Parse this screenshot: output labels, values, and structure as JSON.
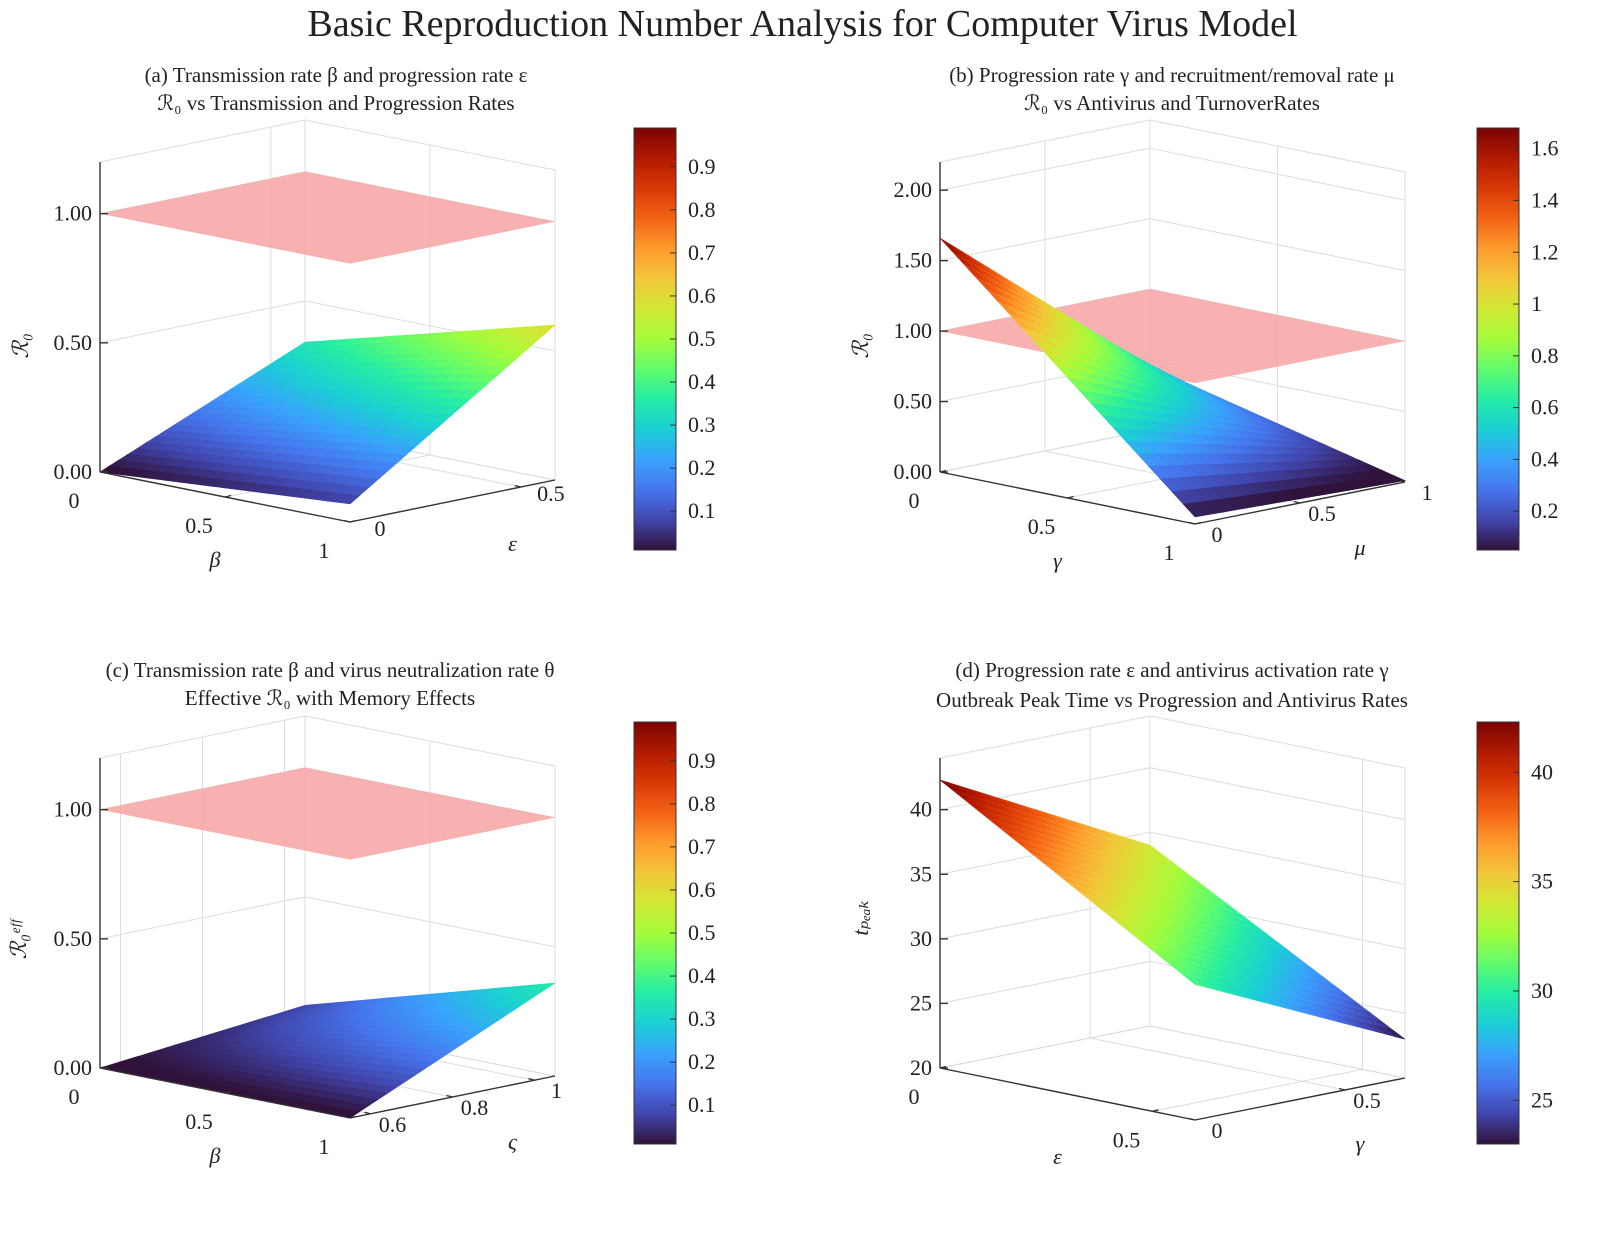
{
  "figure": {
    "title": "Basic Reproduction Number Analysis for Computer Virus Model",
    "surface_colormap": [
      "#30123b",
      "#4146ad",
      "#4675ed",
      "#39a2fc",
      "#1bcfd4",
      "#24eca6",
      "#61fc6c",
      "#a4fc3b",
      "#d1e834",
      "#f3c63a",
      "#fe9b2d",
      "#f36315",
      "#d93806",
      "#b11901",
      "#7a0403"
    ],
    "threshold_plane_color": "#f7a3a3",
    "grid_color": "#dcdcdc",
    "axis_color": "#333333"
  },
  "chart_data": [
    {
      "id": "a",
      "type": "surface",
      "subtitle": "(a) Transmission rate β and progression rate ε",
      "title": "ℛ₀ vs Transmission and Progression Rates",
      "xlabel": "β",
      "ylabel": "ε",
      "zlabel": "ℛ₀",
      "xticks": [
        "0",
        "0.5",
        "1"
      ],
      "yticks": [
        "0",
        "0.5"
      ],
      "zticks": [
        "0.00",
        "0.50",
        "1.00"
      ],
      "xlim": [
        0,
        1
      ],
      "ylim": [
        0,
        0.6
      ],
      "zlim": [
        0,
        1.2
      ],
      "threshold": 1.0,
      "corners": {
        "x0y0": 0.0,
        "x1y0": 0.07,
        "x0y1": 0.34,
        "x1y1": 0.6
      },
      "colorbar": {
        "range": [
          0.01,
          0.99
        ],
        "ticks": [
          "0.1",
          "0.2",
          "0.3",
          "0.4",
          "0.5",
          "0.6",
          "0.7",
          "0.8",
          "0.9"
        ]
      }
    },
    {
      "id": "b",
      "type": "surface",
      "subtitle": "(b) Progression rate γ and recruitment/removal rate μ",
      "title": "ℛ₀ vs Antivirus and TurnoverRates",
      "xlabel": "γ",
      "ylabel": "μ",
      "zlabel": "ℛ₀",
      "xticks": [
        "0",
        "0.5",
        "1"
      ],
      "yticks": [
        "0",
        "0.5",
        "1"
      ],
      "zticks": [
        "0.00",
        "0.50",
        "1.00",
        "1.50",
        "2.00"
      ],
      "xlim": [
        0,
        1
      ],
      "ylim": [
        0,
        1
      ],
      "zlim": [
        0,
        2.2
      ],
      "threshold": 1.0,
      "corners": {
        "x0y0": 1.66,
        "x1y0": 0.05,
        "x0y1": 0.45,
        "x1y1": 0.01
      },
      "colorbar": {
        "range": [
          0.05,
          1.68
        ],
        "ticks": [
          "0.2",
          "0.4",
          "0.6",
          "0.8",
          "1",
          "1.2",
          "1.4",
          "1.6"
        ]
      }
    },
    {
      "id": "c",
      "type": "surface",
      "subtitle": "(c) Transmission rate β and virus neutralization  rate θ",
      "title": "Effective ℛ₀ with Memory Effects",
      "xlabel": "β",
      "ylabel": "ς",
      "zlabel": "ℛ₀ᵉᶠᶠ",
      "xticks": [
        "0",
        "0.5",
        "1"
      ],
      "yticks": [
        "0.6",
        "0.8",
        "1"
      ],
      "zticks": [
        "0.00",
        "0.50",
        "1.00"
      ],
      "xlim": [
        0,
        1
      ],
      "ylim": [
        0.55,
        1.05
      ],
      "zlim": [
        0,
        1.2
      ],
      "threshold": 1.0,
      "corners": {
        "x0y0": 0.0,
        "x1y0": 0.0,
        "x0y1": 0.08,
        "x1y1": 0.36
      },
      "colorbar": {
        "range": [
          0.01,
          0.99
        ],
        "ticks": [
          "0.1",
          "0.2",
          "0.3",
          "0.4",
          "0.5",
          "0.6",
          "0.7",
          "0.8",
          "0.9"
        ]
      }
    },
    {
      "id": "d",
      "type": "surface",
      "subtitle": "(d) Progression rate ε and antivirus activation rate γ",
      "title": "Outbreak Peak Time vs Progression and Antivirus Rates",
      "xlabel": "ε",
      "ylabel": "γ",
      "zlabel": "tₚₑₐₖ",
      "xticks": [
        "0",
        "0.5"
      ],
      "yticks": [
        "0",
        "0.5"
      ],
      "zticks": [
        "20",
        "25",
        "30",
        "35",
        "40"
      ],
      "xlim": [
        0,
        0.6
      ],
      "ylim": [
        0,
        0.7
      ],
      "zlim": [
        20,
        44
      ],
      "threshold": null,
      "corners": {
        "x0y0": 42.3,
        "x1y0": 30.5,
        "x0y1": 34.0,
        "x1y1": 23.0
      },
      "colorbar": {
        "range": [
          23.0,
          42.3
        ],
        "ticks": [
          "25",
          "30",
          "35",
          "40"
        ]
      }
    }
  ]
}
